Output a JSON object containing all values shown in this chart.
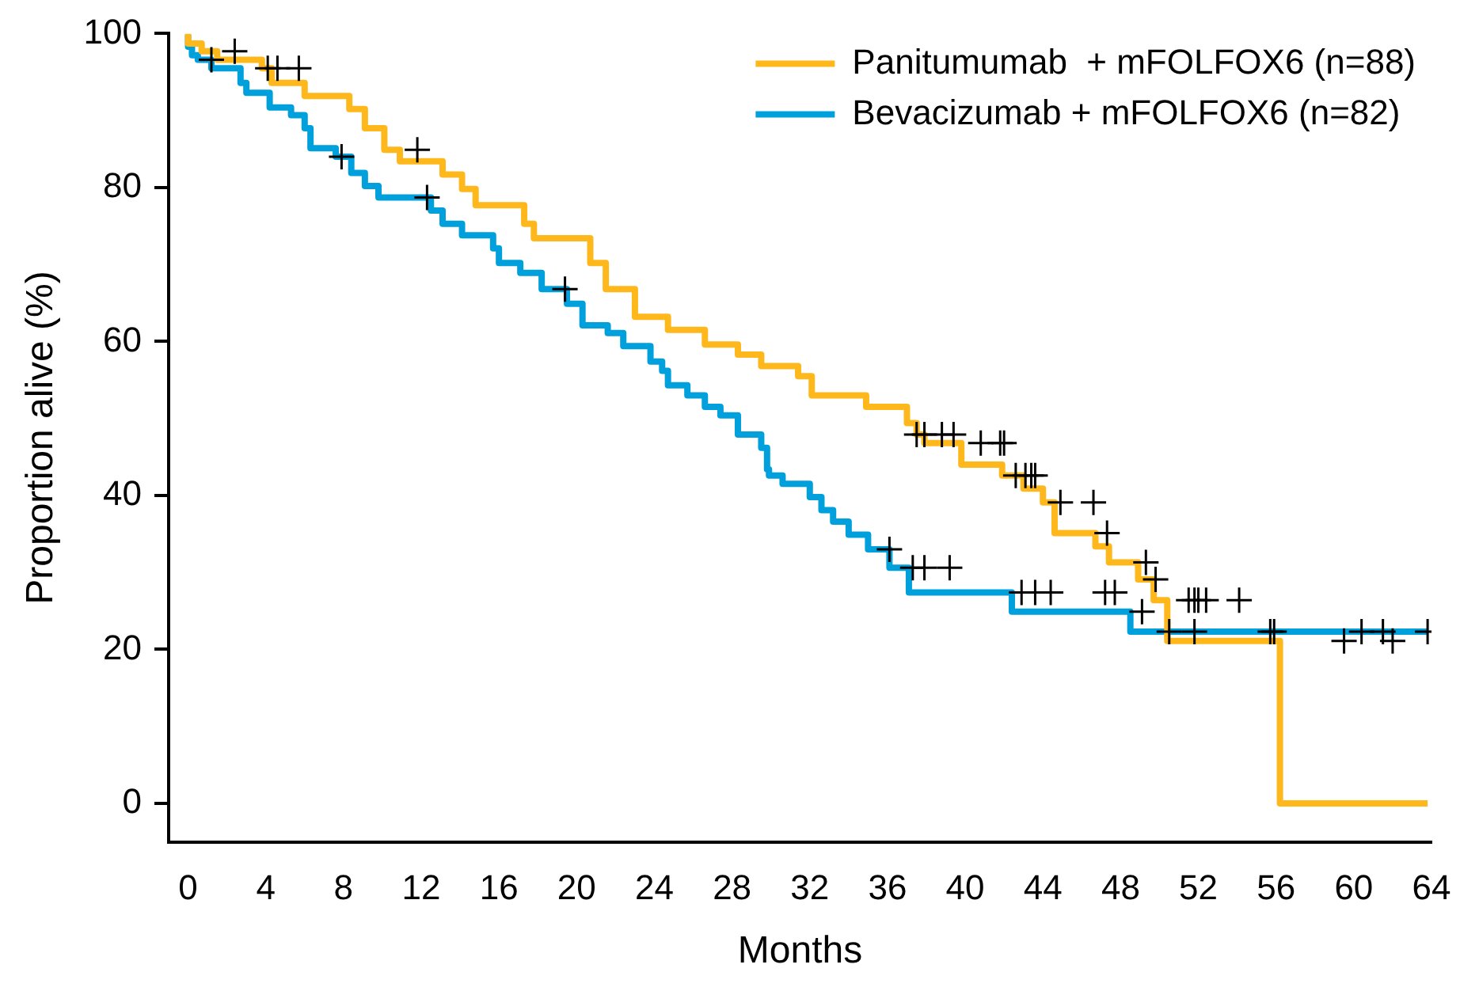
{
  "chart_data": {
    "type": "step",
    "xlabel": "Months",
    "ylabel": "Proportion alive (%)",
    "xlim": [
      -1,
      64
    ],
    "ylim": [
      -5,
      100
    ],
    "xticks": [
      0,
      4,
      8,
      12,
      16,
      20,
      24,
      28,
      32,
      36,
      40,
      44,
      48,
      52,
      56,
      60,
      64
    ],
    "yticks": [
      0,
      20,
      40,
      60,
      80,
      100
    ],
    "grid": false,
    "legend": "top right",
    "series": [
      {
        "name": "Panitumumab  + mFOLFOX6 (n=88)",
        "color": "#ffb81c",
        "x": [
          0,
          0.7,
          1.5,
          3.8,
          4.3,
          6,
          8.3,
          9.1,
          10.1,
          10.9,
          13.1,
          14.1,
          14.8,
          17.3,
          17.8,
          20.7,
          21.5,
          23,
          24.7,
          26.6,
          28.3,
          29.5,
          31.4,
          32.1,
          34.9,
          37,
          37.5,
          37.9,
          39.8,
          41.9,
          43,
          44,
          44.6,
          46.7,
          47.4,
          48.9,
          49.7,
          50.4,
          56.2,
          63.8
        ],
        "values": [
          100,
          98.7,
          97.7,
          96.6,
          95.5,
          93.6,
          91.9,
          90.2,
          87.7,
          84.9,
          83.4,
          81.7,
          79.8,
          77.7,
          75.3,
          73.4,
          70.2,
          66.8,
          63.2,
          61.5,
          59.6,
          58.3,
          56.8,
          55.5,
          53,
          51.5,
          49.4,
          47.9,
          46.8,
          44,
          42.6,
          40.9,
          39.1,
          35.1,
          33.4,
          31.3,
          29.1,
          26.4,
          21.1,
          0
        ]
      },
      {
        "name": "Bevacizumab + mFOLFOX6 (n=82)",
        "color": "#00a0dc",
        "x": [
          0,
          0.2,
          0.5,
          1.2,
          2.7,
          3,
          4.2,
          5.3,
          6,
          6.3,
          7.6,
          8.4,
          9.1,
          9.8,
          12.5,
          13.1,
          14.1,
          15.7,
          16,
          17.1,
          18.2,
          19.5,
          20.3,
          21.6,
          22.4,
          23.8,
          24.4,
          24.7,
          25.7,
          26.6,
          27.4,
          28.3,
          29.5,
          29.8,
          29.9,
          30.6,
          32,
          32.6,
          33.2,
          34,
          35,
          36.1,
          37.1,
          42.4,
          48.5,
          49.4,
          63.8
        ],
        "values": [
          99.8,
          98.3,
          97.2,
          96.6,
          95.5,
          93.6,
          92.3,
          90.4,
          89.4,
          87.7,
          85.1,
          84,
          81.9,
          80.2,
          78.7,
          77,
          75.3,
          73.8,
          72.1,
          70.2,
          68.9,
          66.8,
          64.9,
          62.1,
          61.1,
          59.4,
          57.4,
          56.2,
          54.3,
          53,
          51.5,
          50.4,
          47.9,
          46.2,
          43.4,
          42.6,
          41.5,
          39.8,
          38.1,
          36.6,
          34.9,
          33,
          30.6,
          27.4,
          24.9,
          22.3,
          22.3
        ]
      },
      {
        "type": "scatter",
        "marker": "cross",
        "color": "#000000",
        "x": [
          2.4,
          4.1,
          4.6,
          5.7,
          11.8,
          37.5,
          37.9,
          38.8,
          39.4,
          40.8,
          41.8,
          42,
          42.6,
          43.1,
          43.4,
          43.6,
          44.9,
          46.6,
          47.3,
          49.3,
          49.8,
          51.5,
          51.8,
          52,
          52.4,
          54.1,
          59.5,
          62
        ],
        "values": [
          97.7,
          95.5,
          95.5,
          95.5,
          84.9,
          47.9,
          47.9,
          47.9,
          47.9,
          46.8,
          46.8,
          46.8,
          42.6,
          42.6,
          42.6,
          42.6,
          39.1,
          39.1,
          35.1,
          31.3,
          29.1,
          26.4,
          26.4,
          26.4,
          26.4,
          26.4,
          21.1,
          21.1
        ]
      },
      {
        "type": "scatter",
        "marker": "cross",
        "color": "#000000",
        "x": [
          1.2,
          7.9,
          12.3,
          19.4,
          36.1,
          37.3,
          37.9,
          39.2,
          42.9,
          43.6,
          44.4,
          47.2,
          47.7,
          49.1,
          50.5,
          51.8,
          55.7,
          55.9,
          60.4,
          61.5,
          63.8
        ],
        "values": [
          96.6,
          84,
          78.7,
          66.8,
          33,
          30.6,
          30.6,
          30.6,
          27.4,
          27.4,
          27.4,
          27.4,
          27.4,
          24.9,
          22.3,
          22.3,
          22.3,
          22.3,
          22.3,
          22.3,
          22.3
        ]
      }
    ]
  }
}
